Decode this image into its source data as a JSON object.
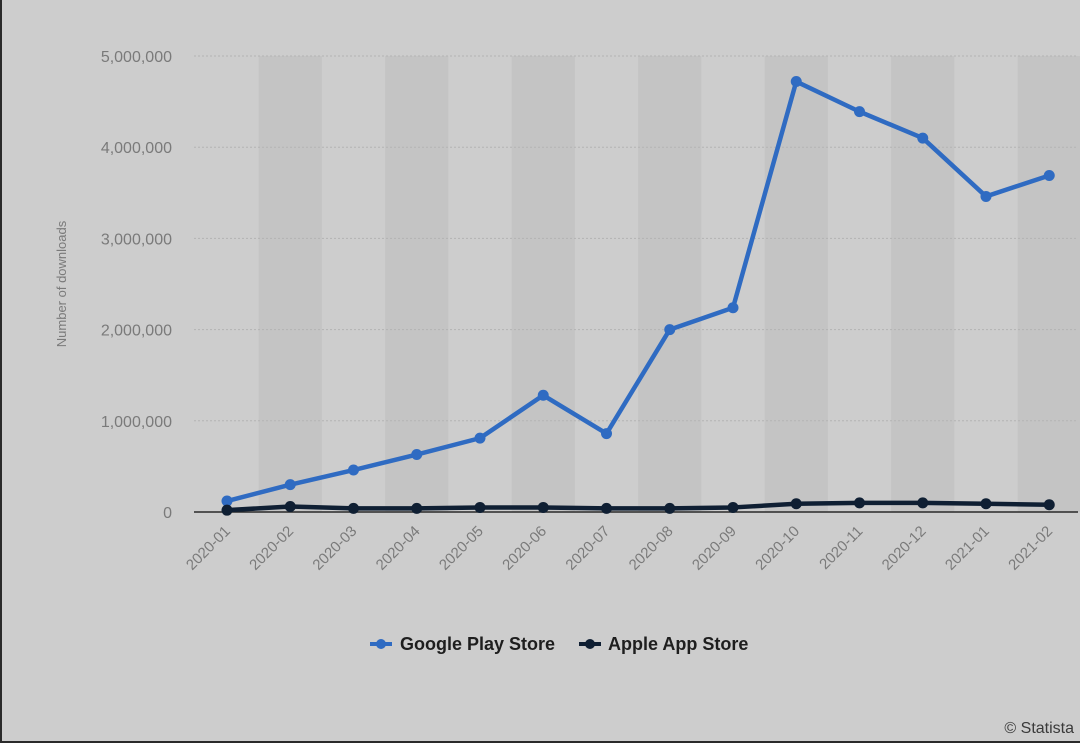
{
  "chart_data": {
    "type": "line",
    "title": "",
    "xlabel": "",
    "ylabel": "Number of downloads",
    "ylim": [
      0,
      5000000
    ],
    "yticks": [
      0,
      1000000,
      2000000,
      3000000,
      4000000,
      5000000
    ],
    "ytick_labels": [
      "0",
      "1,000,000",
      "2,000,000",
      "3,000,000",
      "4,000,000",
      "5,000,000"
    ],
    "categories": [
      "2020-01",
      "2020-02",
      "2020-03",
      "2020-04",
      "2020-05",
      "2020-06",
      "2020-07",
      "2020-08",
      "2020-09",
      "2020-10",
      "2020-11",
      "2020-12",
      "2021-01",
      "2021-02"
    ],
    "series": [
      {
        "name": "Google Play Store",
        "color": "#2f6bc2",
        "values": [
          120000,
          300000,
          460000,
          630000,
          810000,
          1280000,
          860000,
          2000000,
          2240000,
          4720000,
          4390000,
          4100000,
          3460000,
          3690000
        ]
      },
      {
        "name": "Apple App Store",
        "color": "#0f1f33",
        "values": [
          20000,
          60000,
          40000,
          40000,
          50000,
          50000,
          40000,
          40000,
          50000,
          90000,
          100000,
          100000,
          90000,
          80000
        ]
      }
    ],
    "grid": true,
    "legend_position": "bottom-center"
  },
  "credit": "© Statista"
}
